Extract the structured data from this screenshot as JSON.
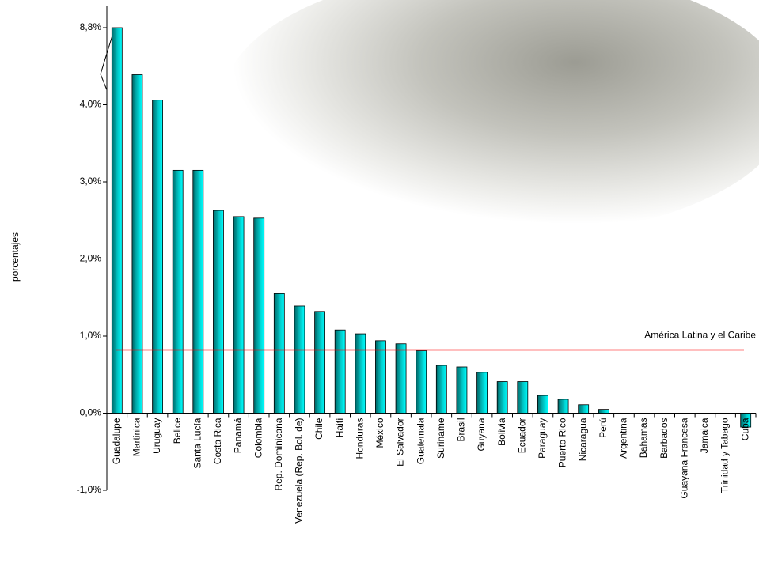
{
  "chart_data": {
    "type": "bar",
    "y_label": "porcentajes",
    "categories": [
      "Guadalupe",
      "Martinica",
      "Uruguay",
      "Belice",
      "Santa Lucía",
      "Costa Rica",
      "Panamá",
      "Colombia",
      "Rep. Dominicana",
      "Venezuela (Rep. Bol. de)",
      "Chile",
      "Haití",
      "Honduras",
      "México",
      "El Salvador",
      "Guatemala",
      "Suriname",
      "Brasil",
      "Guyana",
      "Bolivia",
      "Ecuador",
      "Paraguay",
      "Puerto Rico",
      "Nicaragua",
      "Perú",
      "Argentina",
      "Bahamas",
      "Barbados",
      "Guayana Francesa",
      "Jamaica",
      "Trinidad y Tabago",
      "Cuba"
    ],
    "values": [
      8.8,
      4.39,
      4.06,
      3.15,
      3.15,
      2.63,
      2.55,
      2.53,
      1.55,
      1.39,
      1.32,
      1.08,
      1.03,
      0.94,
      0.9,
      0.81,
      0.62,
      0.6,
      0.53,
      0.41,
      0.41,
      0.23,
      0.18,
      0.11,
      0.05,
      0,
      0,
      0,
      0,
      0,
      0,
      -0.18
    ],
    "color": "#00ffff",
    "ylim": [
      -1,
      8.8
    ],
    "axis_break": 4.5,
    "yticks": [
      {
        "value": -1,
        "label": "-1,0%"
      },
      {
        "value": 0,
        "label": "0,0%"
      },
      {
        "value": 1,
        "label": "1,0%"
      },
      {
        "value": 2,
        "label": "2,0%"
      },
      {
        "value": 3,
        "label": "3,0%"
      },
      {
        "value": 4,
        "label": "4,0%"
      },
      {
        "value": 8.8,
        "label": "8,8%"
      }
    ],
    "reference_line": {
      "value": 0.82,
      "label": "América Latina y el Caribe",
      "color": "#ff0000"
    }
  }
}
